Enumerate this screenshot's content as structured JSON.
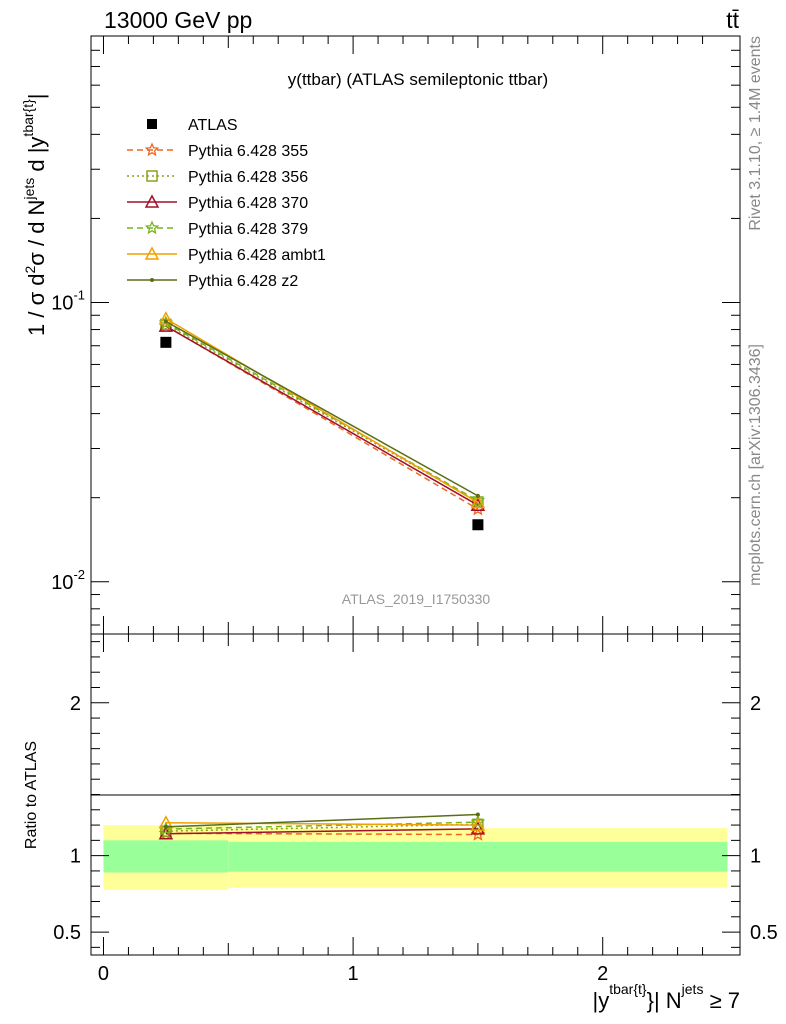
{
  "header": {
    "left": "13000 GeV pp",
    "right": "tt̄"
  },
  "side_text": {
    "rivet": "Rivet 3.1.10, ≥ 1.4M events",
    "mcplots": "mcplots.cern.ch [arXiv:1306.3436]"
  },
  "watermark": "ATLAS_2019_I1750330",
  "colors": {
    "ATLAS": "#000000",
    "Pythia 6.428 355": "#f26522",
    "Pythia 6.428 356": "#8ca01e",
    "Pythia 6.428 370": "#a0102a",
    "Pythia 6.428 379": "#78b41e",
    "Pythia 6.428 ambt1": "#f0a000",
    "Pythia 6.428 z2": "#5a6e14",
    "band_inner": "#99ff99",
    "band_outer": "#ffff99"
  },
  "chart_data": [
    {
      "type": "line",
      "title": "y(ttbar) (ATLAS semileptonic ttbar)",
      "ylabel": "1 / σ d²σ / d N^jets d |y^tbar{t}|",
      "xlabel": "|y^tbar{t}| N^jets ≥ 7",
      "yscale": "log",
      "ylim": [
        0.0065,
        0.9
      ],
      "xlim": [
        -0.05,
        2.55
      ],
      "yticks": [
        "10^-2",
        "10^-1"
      ],
      "legend_position": "top-left",
      "x": [
        0.25,
        1.5
      ],
      "series": [
        {
          "name": "ATLAS",
          "marker": "square",
          "values": [
            0.072,
            0.016
          ]
        },
        {
          "name": "Pythia 6.428 355",
          "marker": "star",
          "dash": "dashed",
          "values": [
            0.0825,
            0.0182
          ]
        },
        {
          "name": "Pythia 6.428 356",
          "marker": "open-square",
          "dash": "dotted",
          "values": [
            0.0835,
            0.0193
          ]
        },
        {
          "name": "Pythia 6.428 370",
          "marker": "open-triangle",
          "dash": "solid",
          "values": [
            0.0823,
            0.0188
          ]
        },
        {
          "name": "Pythia 6.428 379",
          "marker": "star",
          "dash": "dashed",
          "values": [
            0.0845,
            0.0195
          ]
        },
        {
          "name": "Pythia 6.428 ambt1",
          "marker": "open-triangle",
          "dash": "solid",
          "values": [
            0.0875,
            0.0192
          ]
        },
        {
          "name": "Pythia 6.428 z2",
          "marker": "dot",
          "dash": "solid",
          "values": [
            0.0855,
            0.0203
          ]
        }
      ]
    },
    {
      "type": "line",
      "ylabel": "Ratio to ATLAS",
      "ylim": [
        0.35,
        2.45
      ],
      "yticks": [
        0.5,
        1,
        2
      ],
      "xticks": [
        0,
        1,
        2
      ],
      "bands": [
        {
          "x0": 0.0,
          "x1": 0.5,
          "inner": [
            0.89,
            1.1
          ],
          "outer": [
            0.775,
            1.2
          ]
        },
        {
          "x0": 0.5,
          "x1": 2.5,
          "inner": [
            0.895,
            1.09
          ],
          "outer": [
            0.79,
            1.18
          ]
        }
      ],
      "x": [
        0.25,
        1.5
      ],
      "series": [
        {
          "name": "Pythia 6.428 355",
          "values": [
            1.146,
            1.138
          ]
        },
        {
          "name": "Pythia 6.428 356",
          "values": [
            1.16,
            1.205
          ]
        },
        {
          "name": "Pythia 6.428 370",
          "values": [
            1.143,
            1.175
          ]
        },
        {
          "name": "Pythia 6.428 379",
          "values": [
            1.174,
            1.219
          ]
        },
        {
          "name": "Pythia 6.428 ambt1",
          "values": [
            1.215,
            1.2
          ]
        },
        {
          "name": "Pythia 6.428 z2",
          "values": [
            1.188,
            1.269
          ]
        }
      ]
    }
  ]
}
